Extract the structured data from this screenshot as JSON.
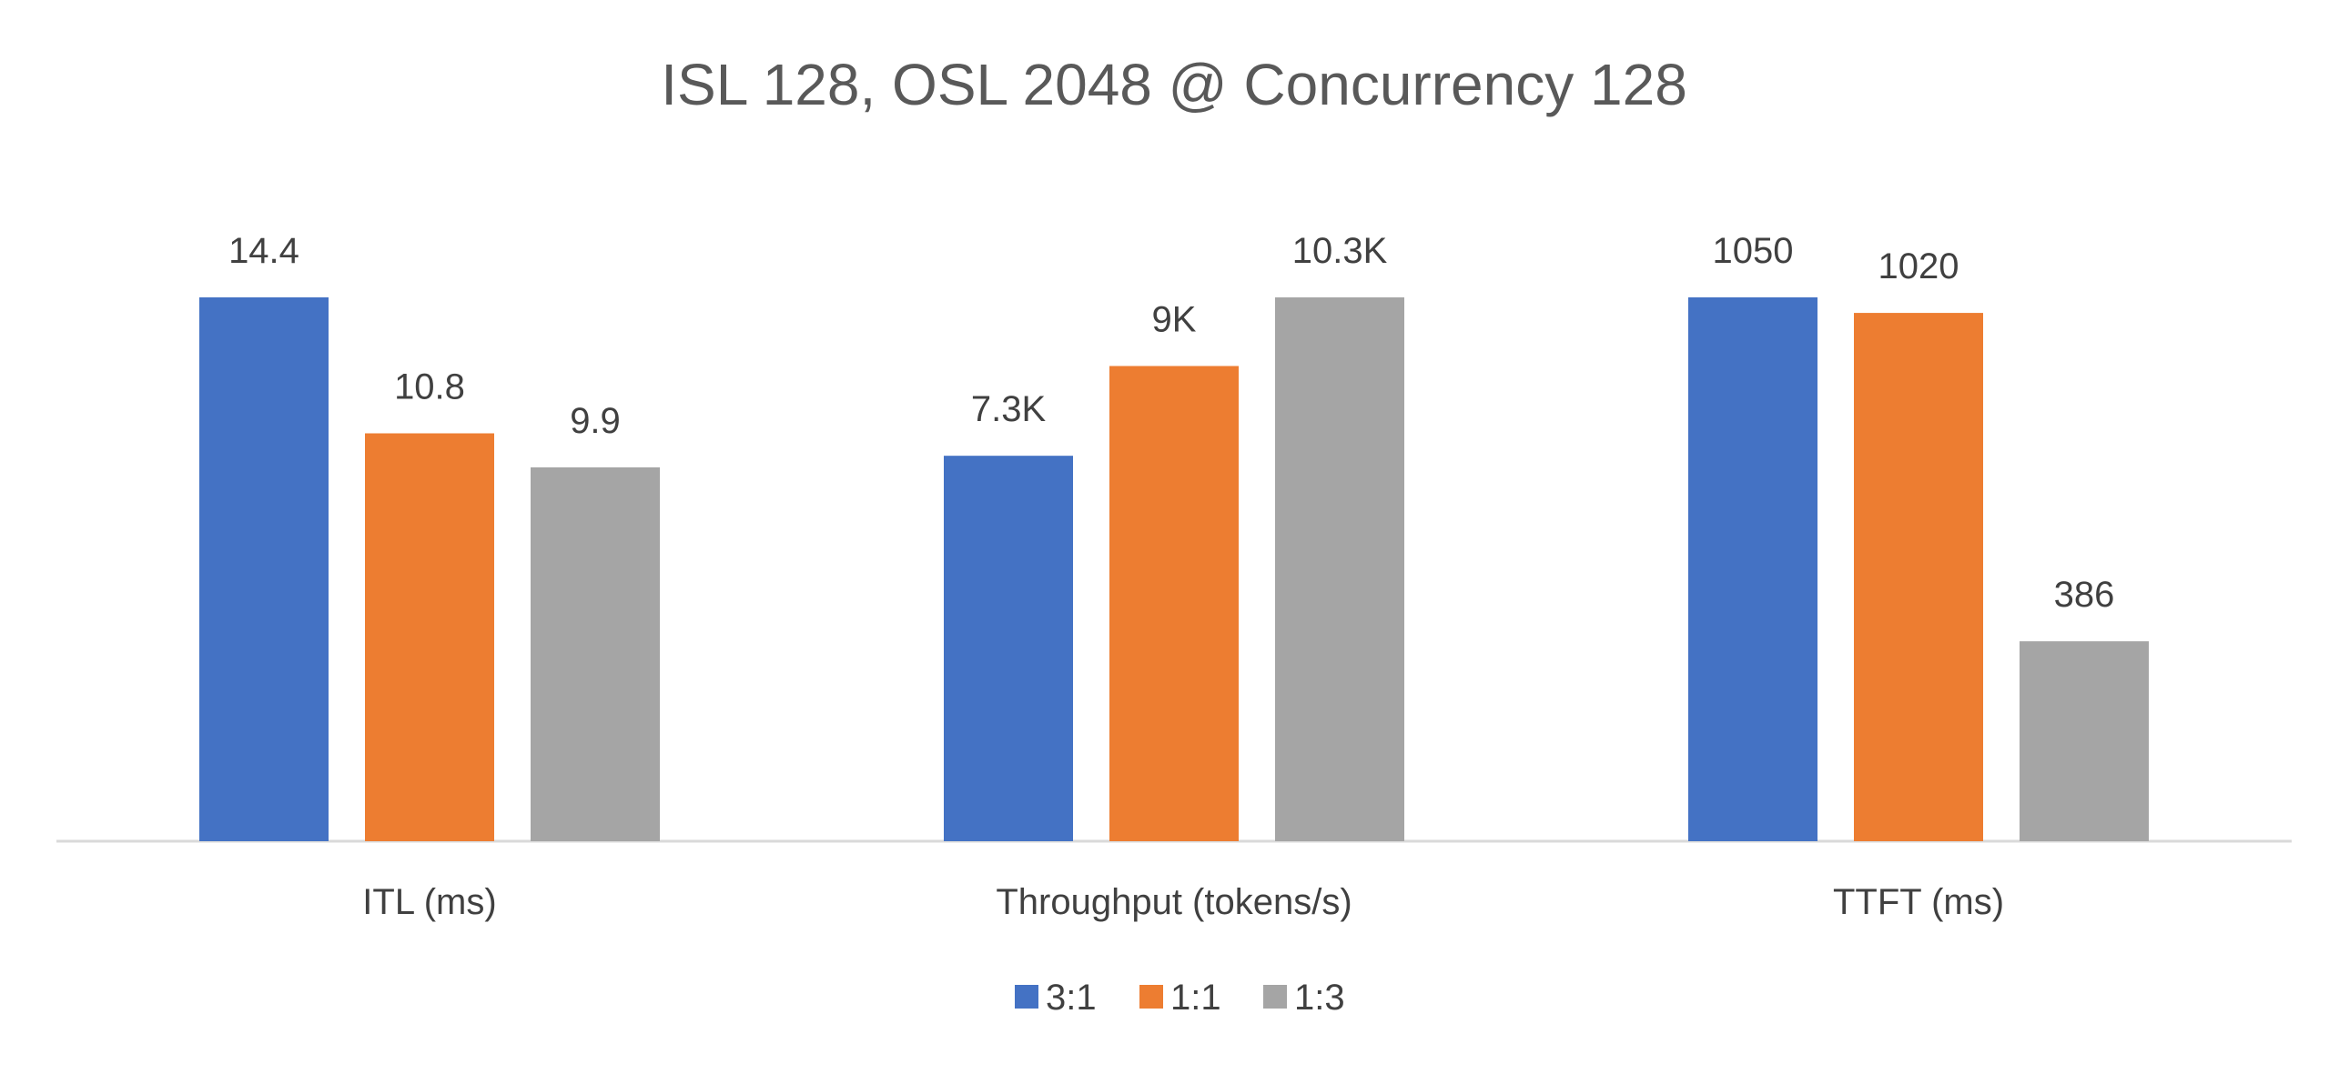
{
  "chart_data": {
    "type": "bar",
    "title": "ISL 128, OSL 2048 @ Concurrency 128",
    "legend_position": "bottom",
    "grid": false,
    "groups": [
      {
        "category": "ITL (ms)",
        "max": 14.4,
        "values": [
          14.4,
          10.8,
          9.9
        ],
        "labels": [
          "14.4",
          "10.8",
          "9.9"
        ]
      },
      {
        "category": "Throughput (tokens/s)",
        "max": 10300,
        "values": [
          7300,
          9000,
          10300
        ],
        "labels": [
          "7.3K",
          "9K",
          "10.3K"
        ]
      },
      {
        "category": "TTFT (ms)",
        "max": 1050,
        "values": [
          1050,
          1020,
          386
        ],
        "labels": [
          "1050",
          "1020",
          "386"
        ]
      }
    ],
    "series": [
      {
        "name": "3:1",
        "color": "#4472C4"
      },
      {
        "name": "1:1",
        "color": "#ED7D31"
      },
      {
        "name": "1:3",
        "color": "#A5A5A5"
      }
    ]
  }
}
